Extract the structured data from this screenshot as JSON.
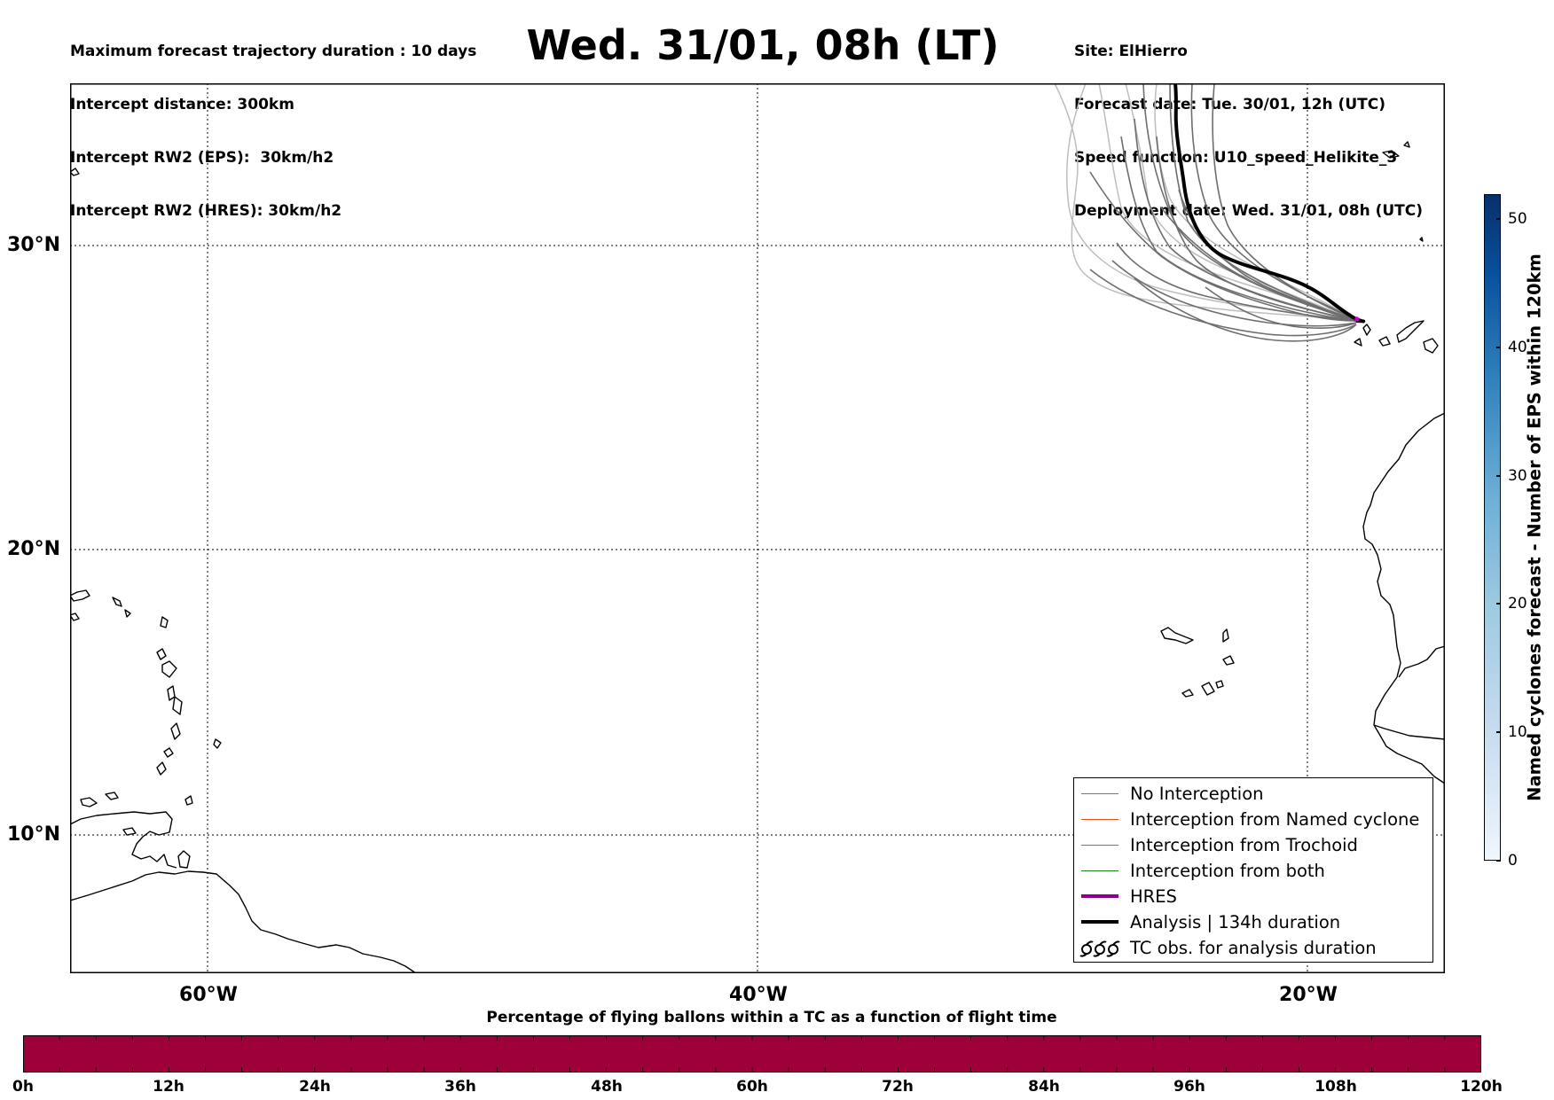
{
  "header_left": [
    "Maximum forecast trajectory duration : 10 days",
    "Intercept distance: 300km",
    "Intercept RW2 (EPS):  30km/h2",
    "Intercept RW2 (HRES): 30km/h2"
  ],
  "title": "Wed. 31/01, 08h (LT)",
  "header_right": [
    "Site: ElHierro",
    "Forecast date: Tue. 30/01, 12h (UTC)",
    "Speed function: U10_speed_Helikite_3",
    "Deployment date: Wed. 31/01, 08h (UTC)"
  ],
  "map": {
    "lon_range": [
      -65,
      -15
    ],
    "lat_range": [
      5,
      34.5
    ],
    "x_ticks": [
      "60°W",
      "40°W",
      "20°W"
    ],
    "y_ticks": [
      "30°N",
      "20°N",
      "10°N"
    ],
    "site_marker_color": "#cc00cc"
  },
  "legend": [
    {
      "label": "No Interception",
      "color": "#777777",
      "style": "line-thin"
    },
    {
      "label": "Interception from Named cyclone",
      "color": "#e8501e",
      "style": "line-thin"
    },
    {
      "label": "Interception from Trochoid",
      "color": "#7f7f1a",
      "style": "line-thin"
    },
    {
      "label": "Interception from both",
      "color": "#1e7f1e",
      "style": "line-thin"
    },
    {
      "label": "HRES",
      "color": "#8b008b",
      "style": "line-thick"
    },
    {
      "label": "Analysis | 134h duration",
      "color": "#000000",
      "style": "line-thick"
    },
    {
      "label": "TC obs. for analysis duration",
      "color": "#000000",
      "style": "tc-symbols",
      "icon": "tc-symbol-icon"
    }
  ],
  "colorbar": {
    "label": "Named cyclones forecast - Number of EPS within 120km",
    "ticks": [
      "0",
      "10",
      "20",
      "30",
      "40",
      "50"
    ],
    "colors": [
      "#f0f6fd",
      "#08306b"
    ]
  },
  "time_bar": {
    "title": "Percentage of flying ballons within a TC as a function of flight time",
    "ticks": [
      "0h",
      "12h",
      "24h",
      "36h",
      "48h",
      "60h",
      "72h",
      "84h",
      "96h",
      "108h",
      "120h"
    ],
    "fill_color": "#9e0039"
  }
}
